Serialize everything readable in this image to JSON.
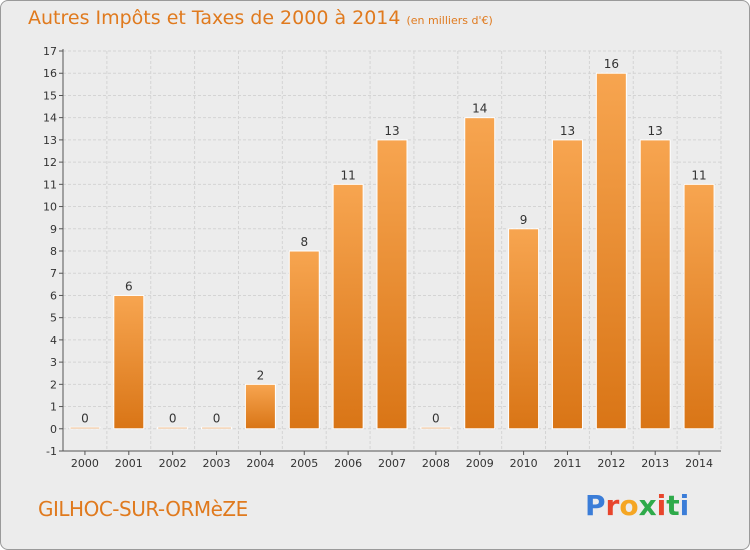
{
  "title": "Autres Impôts et Taxes de 2000 à 2014",
  "unit": "(en milliers d'€)",
  "commune": "GILHOC-SUR-ORMèZE",
  "logo": {
    "text": "Proxiti",
    "colors": [
      "#3b7dd8",
      "#e8452c",
      "#f5a623",
      "#2eaa4a",
      "#e8452c",
      "#2eaa4a",
      "#3b7dd8"
    ]
  },
  "colors": {
    "bar_top": "#f7a550",
    "bar_bottom": "#d97516",
    "accent": "#e07a1e"
  },
  "chart_data": {
    "type": "bar",
    "categories": [
      "2000",
      "2001",
      "2002",
      "2003",
      "2004",
      "2005",
      "2006",
      "2007",
      "2008",
      "2009",
      "2010",
      "2011",
      "2012",
      "2013",
      "2014"
    ],
    "values": [
      0,
      6,
      0,
      0,
      2,
      8,
      11,
      13,
      0,
      14,
      9,
      13,
      16,
      13,
      11
    ],
    "value_labels": [
      "0",
      "6",
      "0",
      "0",
      "2",
      "8",
      "11",
      "13",
      "0",
      "14",
      "9",
      "13",
      "16",
      "13",
      "11"
    ],
    "ylim": [
      -1,
      17
    ],
    "yticks": [
      -1,
      0,
      1,
      2,
      3,
      4,
      5,
      6,
      7,
      8,
      9,
      10,
      11,
      12,
      13,
      14,
      15,
      16,
      17
    ],
    "grid": true,
    "legend": "none"
  }
}
